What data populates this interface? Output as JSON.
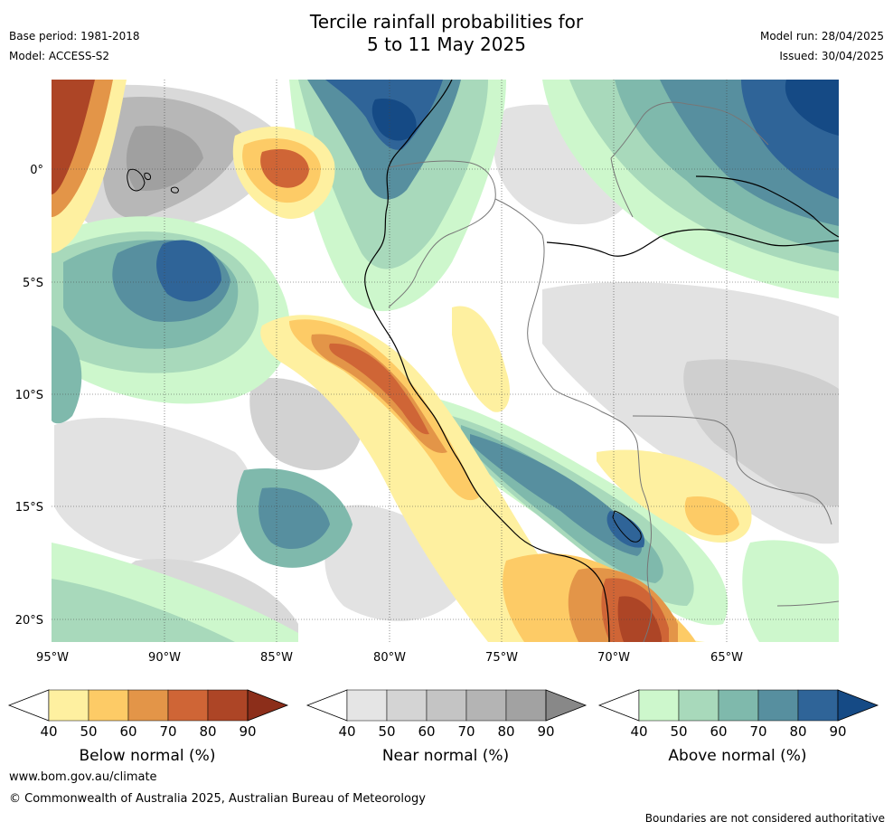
{
  "title_line1": "Tercile rainfall probabilities for",
  "title_line2": "5 to 11 May 2025",
  "meta_left": [
    "Base period: 1981-2018",
    "Model: ACCESS-S2"
  ],
  "meta_right": [
    "Model run: 28/04/2025",
    "Issued: 30/04/2025"
  ],
  "lat_labels": [
    "0°",
    "5°S",
    "10°S",
    "15°S",
    "20°S"
  ],
  "lon_labels": [
    "95°W",
    "90°W",
    "85°W",
    "80°W",
    "75°W",
    "70°W",
    "65°W"
  ],
  "colorbars": [
    {
      "label": "Below normal (%)",
      "ticks": [
        "40",
        "50",
        "60",
        "70",
        "80",
        "90"
      ],
      "colors": [
        "#fef0a0",
        "#fdcb66",
        "#e39548",
        "#cf6536",
        "#ad4526",
        "#8c2e1a"
      ]
    },
    {
      "label": "Near normal (%)",
      "ticks": [
        "40",
        "50",
        "60",
        "70",
        "80",
        "90"
      ],
      "colors": [
        "#e5e5e5",
        "#d4d4d4",
        "#c4c4c4",
        "#b4b4b4",
        "#a2a2a2",
        "#888888"
      ]
    },
    {
      "label": "Above normal (%)",
      "ticks": [
        "40",
        "50",
        "60",
        "70",
        "80",
        "90"
      ],
      "colors": [
        "#cdf7cc",
        "#a8d9bb",
        "#7fb9ac",
        "#578f9f",
        "#2f6498",
        "#154a85"
      ]
    }
  ],
  "footer_url": "www.bom.gov.au/climate",
  "footer_copyright": "© Commonwealth of Australia 2025, Australian Bureau of Meteorology",
  "disclaimer": "Boundaries are not considered authoritative"
}
